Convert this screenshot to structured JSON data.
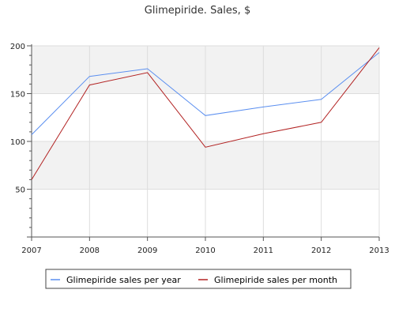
{
  "chart_data": {
    "type": "line",
    "title": "Glimepiride. Sales, $",
    "xlabel": "",
    "ylabel": "",
    "x": [
      "2007",
      "2008",
      "2009",
      "2010",
      "2011",
      "2012",
      "2013"
    ],
    "ylim": [
      0,
      200
    ],
    "yticks": [
      50,
      100,
      150,
      200
    ],
    "series": [
      {
        "name": "Glimepiride sales per year",
        "color": "#5b8ff0",
        "values": [
          107,
          168,
          176,
          127,
          136,
          144,
          193
        ]
      },
      {
        "name": "Glimepiride sales per month",
        "color": "#b22222",
        "values": [
          60,
          159,
          172,
          94,
          108,
          120,
          198
        ]
      }
    ],
    "bands": [
      [
        50,
        100
      ],
      [
        150,
        200
      ]
    ],
    "band_color": "#f2f2f2",
    "grid": true,
    "legend_position": "bottom"
  }
}
